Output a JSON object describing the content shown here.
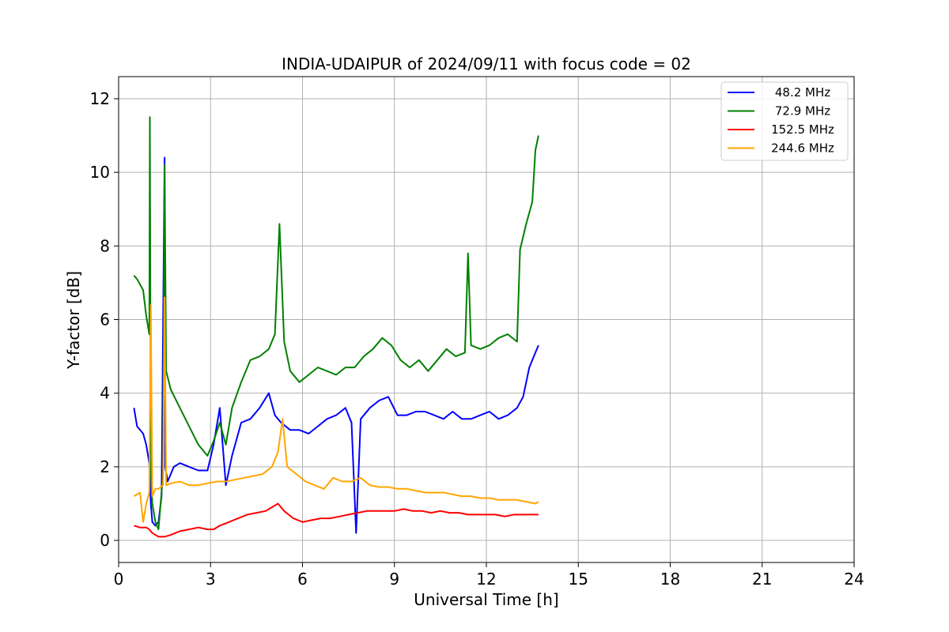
{
  "chart_data": {
    "type": "line",
    "title": "INDIA-UDAIPUR of 2024/09/11 with focus code = 02",
    "xlabel": "Universal Time [h]",
    "ylabel": "Y-factor [dB]",
    "xlim": [
      0,
      24
    ],
    "ylim": [
      -0.6,
      12.6
    ],
    "xticks": [
      0,
      3,
      6,
      9,
      12,
      15,
      18,
      21,
      24
    ],
    "yticks": [
      0,
      2,
      4,
      6,
      8,
      10,
      12
    ],
    "grid": true,
    "legend_position": "top-right",
    "series": [
      {
        "name": " 48.2 MHz",
        "color": "#0000ff",
        "x": [
          0.5,
          0.6,
          0.8,
          0.9,
          1.0,
          1.05,
          1.1,
          1.2,
          1.3,
          1.4,
          1.5,
          1.52,
          1.6,
          1.8,
          2.0,
          2.3,
          2.6,
          2.9,
          3.1,
          3.3,
          3.5,
          3.7,
          4.0,
          4.3,
          4.6,
          4.9,
          5.1,
          5.3,
          5.6,
          5.9,
          6.2,
          6.5,
          6.8,
          7.1,
          7.4,
          7.6,
          7.75,
          7.9,
          8.2,
          8.5,
          8.8,
          9.1,
          9.4,
          9.7,
          10.0,
          10.3,
          10.6,
          10.9,
          11.2,
          11.5,
          11.8,
          12.1,
          12.4,
          12.7,
          13.0,
          13.2,
          13.4,
          13.6,
          13.7
        ],
        "y": [
          3.6,
          3.1,
          2.9,
          2.6,
          2.1,
          1.0,
          0.5,
          0.4,
          0.5,
          1.2,
          10.4,
          2.0,
          1.6,
          2.0,
          2.1,
          2.0,
          1.9,
          1.9,
          2.6,
          3.6,
          1.5,
          2.3,
          3.2,
          3.3,
          3.6,
          4.0,
          3.4,
          3.2,
          3.0,
          3.0,
          2.9,
          3.1,
          3.3,
          3.4,
          3.6,
          3.2,
          0.2,
          3.3,
          3.6,
          3.8,
          3.9,
          3.4,
          3.4,
          3.5,
          3.5,
          3.4,
          3.3,
          3.5,
          3.3,
          3.3,
          3.4,
          3.5,
          3.3,
          3.4,
          3.6,
          3.9,
          4.7,
          5.1,
          5.3
        ]
      },
      {
        "name": " 72.9 MHz",
        "color": "#008000",
        "x": [
          0.5,
          0.6,
          0.8,
          0.9,
          1.0,
          1.02,
          1.05,
          1.1,
          1.2,
          1.3,
          1.45,
          1.5,
          1.55,
          1.7,
          2.0,
          2.3,
          2.6,
          2.9,
          3.1,
          3.3,
          3.5,
          3.7,
          4.0,
          4.3,
          4.6,
          4.9,
          5.1,
          5.25,
          5.4,
          5.6,
          5.9,
          6.2,
          6.5,
          6.8,
          7.1,
          7.4,
          7.7,
          8.0,
          8.3,
          8.6,
          8.9,
          9.2,
          9.5,
          9.8,
          10.1,
          10.4,
          10.7,
          11.0,
          11.3,
          11.4,
          11.5,
          11.8,
          12.1,
          12.4,
          12.7,
          13.0,
          13.1,
          13.3,
          13.5,
          13.6,
          13.7
        ],
        "y": [
          7.2,
          7.1,
          6.8,
          6.1,
          5.6,
          11.5,
          2.0,
          1.0,
          0.5,
          0.3,
          1.8,
          10.2,
          4.6,
          4.1,
          3.6,
          3.1,
          2.6,
          2.3,
          2.7,
          3.2,
          2.6,
          3.6,
          4.3,
          4.9,
          5.0,
          5.2,
          5.6,
          8.6,
          5.4,
          4.6,
          4.3,
          4.5,
          4.7,
          4.6,
          4.5,
          4.7,
          4.7,
          5.0,
          5.2,
          5.5,
          5.3,
          4.9,
          4.7,
          4.9,
          4.6,
          4.9,
          5.2,
          5.0,
          5.1,
          7.8,
          5.3,
          5.2,
          5.3,
          5.5,
          5.6,
          5.4,
          7.9,
          8.6,
          9.2,
          10.6,
          11.0
        ]
      },
      {
        "name": "152.5 MHz",
        "color": "#ff0000",
        "x": [
          0.5,
          0.7,
          0.9,
          1.0,
          1.1,
          1.3,
          1.5,
          1.7,
          2.0,
          2.3,
          2.6,
          2.9,
          3.1,
          3.3,
          3.6,
          3.9,
          4.2,
          4.5,
          4.8,
          5.0,
          5.2,
          5.4,
          5.7,
          6.0,
          6.3,
          6.6,
          6.9,
          7.2,
          7.5,
          7.8,
          8.1,
          8.4,
          8.7,
          9.0,
          9.3,
          9.6,
          9.9,
          10.2,
          10.5,
          10.8,
          11.1,
          11.4,
          11.7,
          12.0,
          12.3,
          12.6,
          12.9,
          13.2,
          13.5,
          13.7
        ],
        "y": [
          0.4,
          0.35,
          0.35,
          0.3,
          0.2,
          0.1,
          0.1,
          0.15,
          0.25,
          0.3,
          0.35,
          0.3,
          0.3,
          0.4,
          0.5,
          0.6,
          0.7,
          0.75,
          0.8,
          0.9,
          1.0,
          0.8,
          0.6,
          0.5,
          0.55,
          0.6,
          0.6,
          0.65,
          0.7,
          0.75,
          0.8,
          0.8,
          0.8,
          0.8,
          0.85,
          0.8,
          0.8,
          0.75,
          0.8,
          0.75,
          0.75,
          0.7,
          0.7,
          0.7,
          0.7,
          0.65,
          0.7,
          0.7,
          0.7,
          0.7
        ]
      },
      {
        "name": "244.6 MHz",
        "color": "#ffa500",
        "x": [
          0.5,
          0.7,
          0.8,
          0.9,
          1.0,
          1.05,
          1.1,
          1.2,
          1.3,
          1.45,
          1.5,
          1.55,
          1.7,
          2.0,
          2.3,
          2.6,
          2.9,
          3.2,
          3.5,
          3.8,
          4.1,
          4.4,
          4.7,
          5.0,
          5.2,
          5.35,
          5.5,
          5.8,
          6.1,
          6.4,
          6.7,
          7.0,
          7.3,
          7.6,
          7.9,
          8.2,
          8.5,
          8.8,
          9.1,
          9.4,
          9.7,
          10.0,
          10.3,
          10.6,
          10.9,
          11.2,
          11.5,
          11.8,
          12.1,
          12.4,
          12.7,
          13.0,
          13.3,
          13.6,
          13.7
        ],
        "y": [
          1.2,
          1.3,
          0.5,
          1.0,
          1.3,
          6.4,
          1.2,
          1.4,
          1.4,
          1.5,
          6.6,
          1.5,
          1.55,
          1.6,
          1.5,
          1.5,
          1.55,
          1.6,
          1.6,
          1.65,
          1.7,
          1.75,
          1.8,
          2.0,
          2.4,
          3.3,
          2.0,
          1.8,
          1.6,
          1.5,
          1.4,
          1.7,
          1.6,
          1.6,
          1.7,
          1.5,
          1.45,
          1.45,
          1.4,
          1.4,
          1.35,
          1.3,
          1.3,
          1.3,
          1.25,
          1.2,
          1.2,
          1.15,
          1.15,
          1.1,
          1.1,
          1.1,
          1.05,
          1.0,
          1.05
        ]
      }
    ]
  }
}
